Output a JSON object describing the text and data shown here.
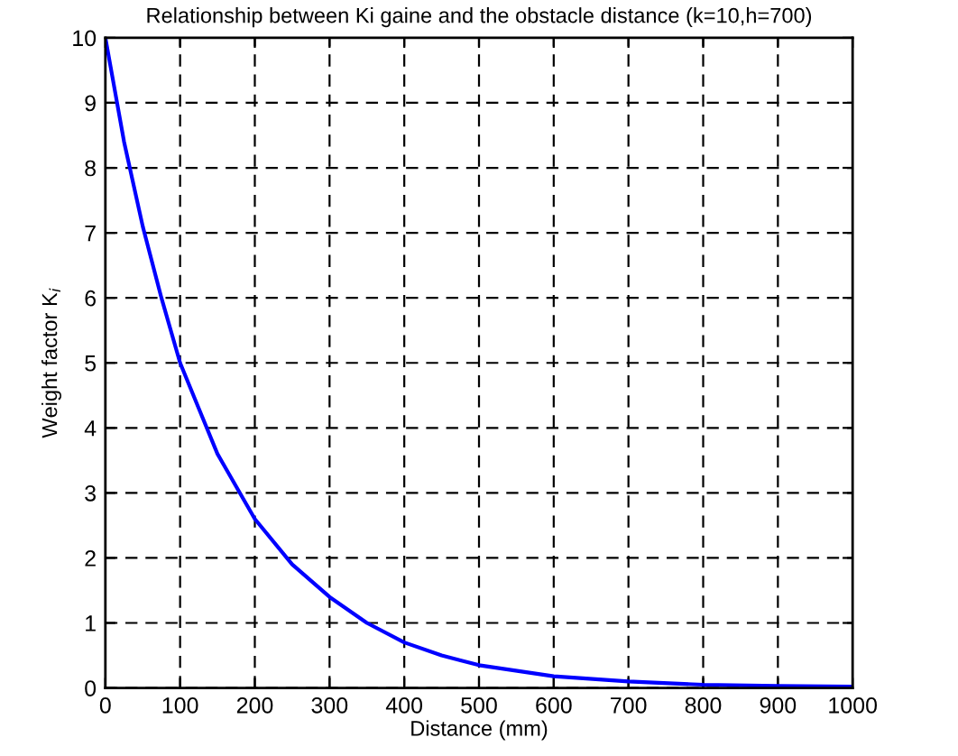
{
  "chart_data": {
    "type": "line",
    "title": "Relationship between Ki gaine and the obstacle distance (k=10,h=700)",
    "xlabel": "Distance (mm)",
    "ylabel": "Weight factor K$_{i}$",
    "x": [
      0,
      25,
      50,
      75,
      100,
      125,
      150,
      175,
      200,
      250,
      300,
      350,
      400,
      450,
      500,
      600,
      700,
      800,
      900,
      1000
    ],
    "series": [
      {
        "color": "#0000ff",
        "values": [
          10,
          8.4,
          7.1,
          6.0,
          5.0,
          4.3,
          3.6,
          3.1,
          2.6,
          1.9,
          1.4,
          1.0,
          0.7,
          0.5,
          0.35,
          0.18,
          0.1,
          0.05,
          0.03,
          0.02
        ]
      }
    ],
    "xlim": [
      0,
      1000
    ],
    "ylim": [
      0,
      10
    ],
    "xticks": [
      0,
      100,
      200,
      300,
      400,
      500,
      600,
      700,
      800,
      900,
      1000
    ],
    "yticks": [
      0,
      1,
      2,
      3,
      4,
      5,
      6,
      7,
      8,
      9,
      10
    ],
    "grid": true,
    "marker": "none",
    "line_style": "solid"
  }
}
